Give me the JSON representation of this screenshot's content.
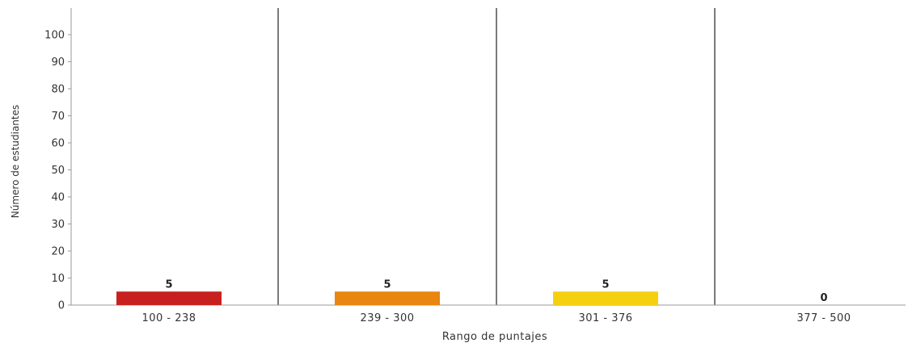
{
  "chart_data": {
    "type": "bar",
    "categories": [
      "100 - 238",
      "239 - 300",
      "301 - 376",
      "377 - 500"
    ],
    "values": [
      5,
      5,
      5,
      0
    ],
    "colors": [
      "#c8201f",
      "#e8860f",
      "#f5d010",
      "#cccccc"
    ],
    "xlabel": "Rango de puntajes",
    "ylabel": "Número de estudiantes",
    "ylim": [
      0,
      110
    ],
    "yticks": [
      0,
      10,
      20,
      30,
      40,
      50,
      60,
      70,
      80,
      90,
      100
    ],
    "separators": true,
    "axis_color": "#999999",
    "separator_color": "#222222"
  }
}
